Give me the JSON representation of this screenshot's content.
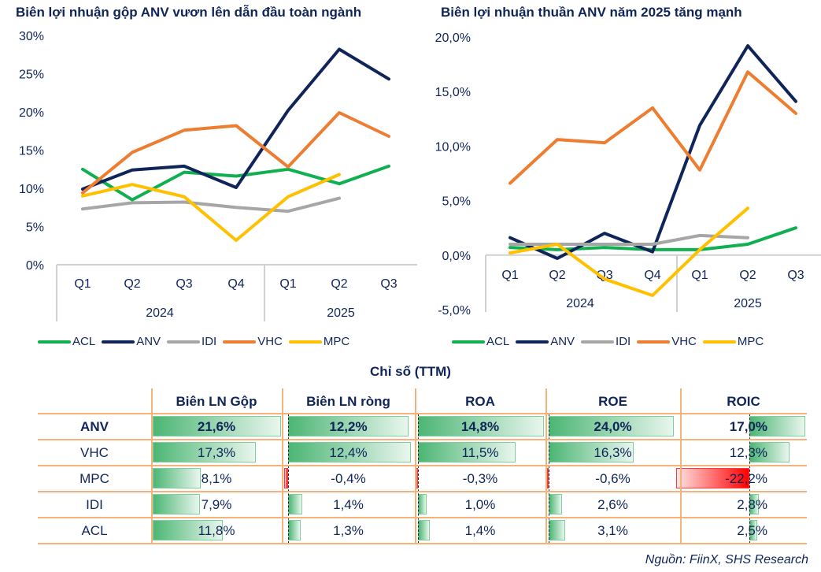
{
  "chart_data": [
    {
      "type": "line",
      "title": "Biên lợi nhuận gộp ANV vươn lên dẫn đầu toàn ngành",
      "x_categories": [
        "Q1",
        "Q2",
        "Q3",
        "Q4",
        "Q1",
        "Q2",
        "Q3"
      ],
      "x_groups": [
        {
          "label": "2024",
          "span": 4
        },
        {
          "label": "2025",
          "span": 3
        }
      ],
      "ylim": [
        0,
        30
      ],
      "yticks": [
        0,
        5,
        10,
        15,
        20,
        25,
        30
      ],
      "ytick_labels": [
        "0%",
        "5%",
        "10%",
        "15%",
        "20%",
        "25%",
        "30%"
      ],
      "grid": false,
      "legend": "bottom",
      "series": [
        {
          "name": "ACL",
          "color": "#10b050",
          "values": [
            12.5,
            8.5,
            12.1,
            11.6,
            12.5,
            10.6,
            12.9
          ]
        },
        {
          "name": "ANV",
          "color": "#0f2459",
          "values": [
            9.9,
            12.4,
            12.9,
            10.1,
            20.2,
            28.2,
            24.3
          ]
        },
        {
          "name": "IDI",
          "color": "#a6a6a6",
          "values": [
            7.3,
            8.1,
            8.2,
            7.5,
            7.0,
            8.7,
            null
          ]
        },
        {
          "name": "VHC",
          "color": "#ed7d31",
          "values": [
            9.4,
            14.7,
            17.6,
            18.2,
            12.8,
            19.9,
            16.8
          ]
        },
        {
          "name": "MPC",
          "color": "#ffc000",
          "values": [
            9.0,
            10.5,
            8.9,
            3.2,
            8.9,
            11.8,
            null
          ]
        }
      ]
    },
    {
      "type": "line",
      "title": "Biên lợi nhuận thuần ANV năm 2025 tăng mạnh",
      "x_categories": [
        "Q1",
        "Q2",
        "Q3",
        "Q4",
        "Q1",
        "Q2",
        "Q3"
      ],
      "x_groups": [
        {
          "label": "2024",
          "span": 4
        },
        {
          "label": "2025",
          "span": 3
        }
      ],
      "ylim": [
        -5,
        20
      ],
      "yticks": [
        -5,
        0,
        5,
        10,
        15,
        20
      ],
      "ytick_labels": [
        "-5,0%",
        "0,0%",
        "5,0%",
        "10,0%",
        "15,0%",
        "20,0%"
      ],
      "grid": false,
      "legend": "bottom",
      "series": [
        {
          "name": "ACL",
          "color": "#10b050",
          "values": [
            0.7,
            0.5,
            0.7,
            0.5,
            0.5,
            1.0,
            2.5
          ]
        },
        {
          "name": "ANV",
          "color": "#0f2459",
          "values": [
            1.6,
            -0.3,
            2.0,
            0.3,
            11.9,
            19.2,
            14.1
          ]
        },
        {
          "name": "IDI",
          "color": "#a6a6a6",
          "values": [
            1.0,
            1.0,
            1.0,
            1.0,
            1.8,
            1.6,
            null
          ]
        },
        {
          "name": "VHC",
          "color": "#ed7d31",
          "values": [
            6.6,
            10.6,
            10.3,
            13.5,
            7.8,
            16.8,
            13.0
          ]
        },
        {
          "name": "MPC",
          "color": "#ffc000",
          "values": [
            0.2,
            1.0,
            -2.2,
            -3.7,
            0.5,
            4.3,
            null
          ]
        }
      ]
    },
    {
      "type": "table",
      "title": "Chỉ số (TTM)",
      "columns": [
        "Biên LN Gộp",
        "Biên LN ròng",
        "ROA",
        "ROE",
        "ROIC"
      ],
      "rows": [
        {
          "name": "ANV",
          "values": [
            21.6,
            12.2,
            14.8,
            24.0,
            17.0
          ],
          "labels": [
            "21,6%",
            "12,2%",
            "14,8%",
            "24,0%",
            "17,0%"
          ]
        },
        {
          "name": "VHC",
          "values": [
            17.3,
            12.4,
            11.5,
            16.3,
            12.3
          ],
          "labels": [
            "17,3%",
            "12,4%",
            "11,5%",
            "16,3%",
            "12,3%"
          ]
        },
        {
          "name": "MPC",
          "values": [
            8.1,
            -0.4,
            -0.3,
            -0.6,
            -22.2
          ],
          "labels": [
            "8,1%",
            "-0,4%",
            "-0,3%",
            "-0,6%",
            "-22,2%"
          ]
        },
        {
          "name": "IDI",
          "values": [
            7.9,
            1.4,
            1.0,
            2.6,
            2.8
          ],
          "labels": [
            "7,9%",
            "1,4%",
            "1,0%",
            "2,6%",
            "2,8%"
          ]
        },
        {
          "name": "ACL",
          "values": [
            11.8,
            1.3,
            1.4,
            3.1,
            2.5
          ],
          "labels": [
            "11,8%",
            "1,3%",
            "1,4%",
            "3,1%",
            "2,5%"
          ]
        }
      ],
      "bar_colors": {
        "positive": "#4cb674",
        "negative": "#ff0000"
      }
    }
  ],
  "source": "Nguồn: FiinX, SHS Research"
}
